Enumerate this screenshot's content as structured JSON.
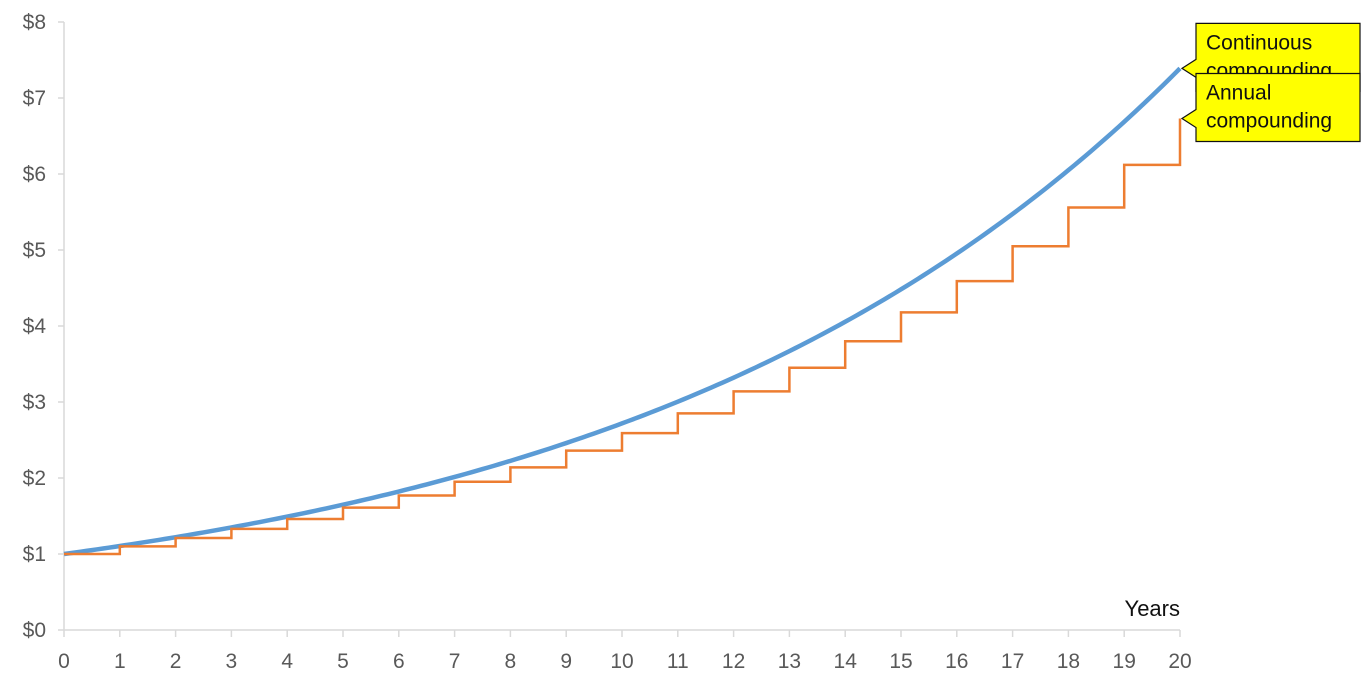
{
  "chart_data": {
    "type": "line",
    "xlabel": "Years",
    "ylabel": "",
    "xlim": [
      0,
      20
    ],
    "ylim": [
      0,
      8
    ],
    "x_ticks": [
      "0",
      "1",
      "2",
      "3",
      "4",
      "5",
      "6",
      "7",
      "8",
      "9",
      "10",
      "11",
      "12",
      "13",
      "14",
      "15",
      "16",
      "17",
      "18",
      "19",
      "20"
    ],
    "y_ticks": [
      "$0",
      "$1",
      "$2",
      "$3",
      "$4",
      "$5",
      "$6",
      "$7",
      "$8"
    ],
    "grid": false,
    "legend": "none",
    "series": [
      {
        "name": "Continuous compounding",
        "style": "smooth",
        "color": "#5B9BD5",
        "x": [
          0,
          1,
          2,
          3,
          4,
          5,
          6,
          7,
          8,
          9,
          10,
          11,
          12,
          13,
          14,
          15,
          16,
          17,
          18,
          19,
          20
        ],
        "values": [
          1.0,
          1.11,
          1.22,
          1.35,
          1.49,
          1.65,
          1.82,
          2.01,
          2.22,
          2.46,
          2.72,
          3.0,
          3.32,
          3.67,
          4.06,
          4.48,
          4.95,
          5.47,
          6.05,
          6.69,
          7.39
        ]
      },
      {
        "name": "Annual compounding",
        "style": "step",
        "color": "#ED7D31",
        "x": [
          0,
          1,
          2,
          3,
          4,
          5,
          6,
          7,
          8,
          9,
          10,
          11,
          12,
          13,
          14,
          15,
          16,
          17,
          18,
          19,
          20
        ],
        "values": [
          1.0,
          1.1,
          1.21,
          1.33,
          1.46,
          1.61,
          1.77,
          1.95,
          2.14,
          2.36,
          2.59,
          2.85,
          3.14,
          3.45,
          3.8,
          4.18,
          4.59,
          5.05,
          5.56,
          6.12,
          6.73
        ]
      }
    ],
    "annotations": [
      {
        "lines": [
          "Continuous",
          "compounding"
        ],
        "series": 0,
        "x": 20,
        "color": "#FFFF00"
      },
      {
        "lines": [
          "Annual",
          "compounding"
        ],
        "series": 1,
        "x": 20,
        "color": "#FFFF00"
      }
    ]
  }
}
